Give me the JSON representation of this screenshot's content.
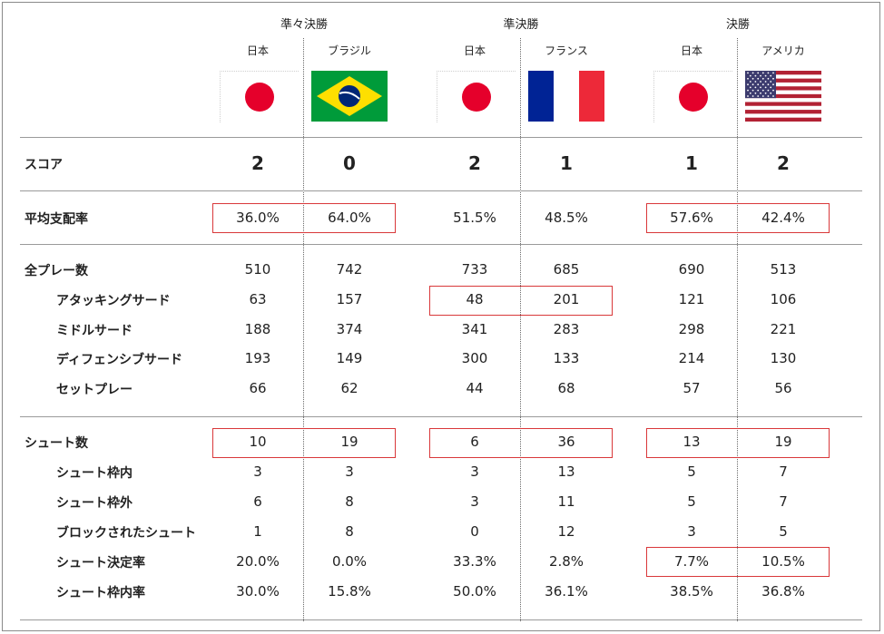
{
  "stages": [
    "準々決勝",
    "準決勝",
    "決勝"
  ],
  "teams": [
    "日本",
    "ブラジル",
    "日本",
    "フランス",
    "日本",
    "アメリカ"
  ],
  "rows": [
    {
      "label": "スコア",
      "values": [
        "2",
        "0",
        "2",
        "1",
        "1",
        "2"
      ],
      "kind": "score"
    },
    {
      "label": "平均支配率",
      "values": [
        "36.0%",
        "64.0%",
        "51.5%",
        "48.5%",
        "57.6%",
        "42.4%"
      ]
    },
    {
      "label": "全プレー数",
      "values": [
        "510",
        "742",
        "733",
        "685",
        "690",
        "513"
      ]
    },
    {
      "label": "アタッキングサード",
      "values": [
        "63",
        "157",
        "48",
        "201",
        "121",
        "106"
      ],
      "indent": true
    },
    {
      "label": "ミドルサード",
      "values": [
        "188",
        "374",
        "341",
        "283",
        "298",
        "221"
      ],
      "indent": true
    },
    {
      "label": "ディフェンシブサード",
      "values": [
        "193",
        "149",
        "300",
        "133",
        "214",
        "130"
      ],
      "indent": true
    },
    {
      "label": "セットプレー",
      "values": [
        "66",
        "62",
        "44",
        "68",
        "57",
        "56"
      ],
      "indent": true
    },
    {
      "label": "シュート数",
      "values": [
        "10",
        "19",
        "6",
        "36",
        "13",
        "19"
      ]
    },
    {
      "label": "シュート枠内",
      "values": [
        "3",
        "3",
        "3",
        "13",
        "5",
        "7"
      ],
      "indent": true
    },
    {
      "label": "シュート枠外",
      "values": [
        "6",
        "8",
        "3",
        "11",
        "5",
        "7"
      ],
      "indent": true
    },
    {
      "label": "ブロックされたシュート",
      "values": [
        "1",
        "8",
        "0",
        "12",
        "3",
        "5"
      ],
      "indent": true
    },
    {
      "label": "シュート決定率",
      "values": [
        "20.0%",
        "0.0%",
        "33.3%",
        "2.8%",
        "7.7%",
        "10.5%"
      ],
      "indent": true
    },
    {
      "label": "シュート枠内率",
      "values": [
        "30.0%",
        "15.8%",
        "50.0%",
        "36.1%",
        "38.5%",
        "36.8%"
      ],
      "indent": true
    }
  ],
  "flags": [
    "japan-flag",
    "brazil-flag",
    "japan-flag",
    "france-flag",
    "japan-flag",
    "usa-flag"
  ],
  "colors": {
    "highlight": "#d9383a",
    "japan_red": "#e5002b",
    "brazil_green": "#009b3a",
    "brazil_yellow": "#fedf00",
    "brazil_blue": "#002776",
    "france_blue": "#002395",
    "france_red": "#ed2939",
    "usa_red": "#b22234",
    "usa_blue": "#3c3b6e"
  }
}
